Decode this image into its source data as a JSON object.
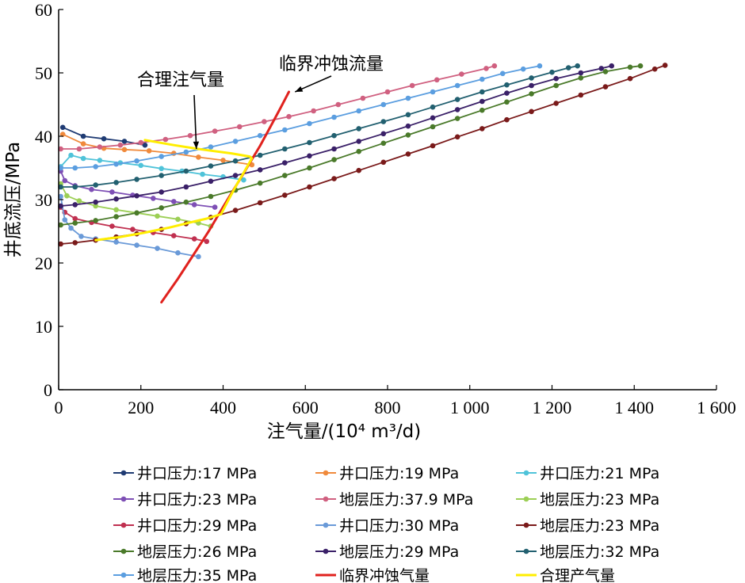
{
  "chart_data": {
    "type": "line",
    "xlabel": "注气量/(10⁴ m³/d)",
    "ylabel": "井底流压/MPa",
    "xlim": [
      0,
      1600
    ],
    "ylim": [
      0,
      60
    ],
    "x_ticks": [
      0,
      200,
      400,
      600,
      800,
      1000,
      1200,
      1400,
      1600
    ],
    "x_tick_labels": [
      "0",
      "200",
      "400",
      "600",
      "800",
      "1 000",
      "1 200",
      "1 400",
      "1 600"
    ],
    "y_ticks": [
      0,
      10,
      20,
      30,
      40,
      50,
      60
    ],
    "y_tick_labels": [
      "0",
      "10",
      "20",
      "30",
      "40",
      "50",
      "60"
    ],
    "grid": false,
    "legend_position": "bottom",
    "annotations": [
      {
        "text": "合理注气量",
        "arrow_to": [
          335,
          38
        ]
      },
      {
        "text": "临界冲蚀流量",
        "arrow_to": [
          575,
          47
        ]
      }
    ],
    "series": [
      {
        "name": "井口压力:17 MPa",
        "color": "#1f3b73",
        "marker": true,
        "x": [
          10,
          60,
          110,
          160,
          210
        ],
        "y": [
          41.4,
          40.0,
          39.6,
          39.2,
          38.6
        ]
      },
      {
        "name": "井口压力:19 MPa",
        "color": "#f08a3c",
        "marker": true,
        "x": [
          10,
          60,
          110,
          160,
          220,
          280,
          340,
          400,
          470
        ],
        "y": [
          40.3,
          38.8,
          38.1,
          37.9,
          37.7,
          37.3,
          36.7,
          36.2,
          35.5
        ]
      },
      {
        "name": "井口压力:21 MPa",
        "color": "#4fc3d9",
        "marker": true,
        "x": [
          5,
          30,
          60,
          100,
          150,
          200,
          250,
          300,
          350,
          400,
          450
        ],
        "y": [
          35.2,
          37.0,
          36.5,
          36.2,
          35.8,
          35.4,
          34.9,
          34.5,
          34.0,
          33.6,
          33.1
        ]
      },
      {
        "name": "井口压力:23 MPa",
        "color": "#7e4fb5",
        "marker": true,
        "x": [
          5,
          15,
          40,
          80,
          130,
          180,
          230,
          280,
          330,
          380
        ],
        "y": [
          34.5,
          33.0,
          32.2,
          31.6,
          31.2,
          30.7,
          30.2,
          29.7,
          29.2,
          28.8
        ]
      },
      {
        "name": "地层压力:37.9 MPa",
        "color": "#d06080",
        "marker": true,
        "x": [
          5,
          50,
          100,
          150,
          200,
          260,
          320,
          380,
          440,
          500,
          560,
          620,
          680,
          740,
          800,
          860,
          920,
          980,
          1040,
          1060
        ],
        "y": [
          38.0,
          38.0,
          38.3,
          38.6,
          39.0,
          39.5,
          40.1,
          40.8,
          41.5,
          42.3,
          43.1,
          44.0,
          45.0,
          46.0,
          47.0,
          48.0,
          48.9,
          49.8,
          50.7,
          51.1
        ]
      },
      {
        "name": "地层压力:23 MPa",
        "color": "#9ccf55",
        "marker": true,
        "x": [
          5,
          20,
          50,
          90,
          140,
          190,
          240,
          290,
          340,
          370
        ],
        "y": [
          32.5,
          30.6,
          29.8,
          29.0,
          28.4,
          27.9,
          27.4,
          26.9,
          26.3,
          25.8
        ]
      },
      {
        "name": "井口压力:29 MPa",
        "color": "#c03050",
        "marker": true,
        "x": [
          5,
          15,
          40,
          80,
          130,
          180,
          230,
          280,
          330,
          360
        ],
        "y": [
          28.8,
          28.0,
          27.0,
          26.4,
          25.8,
          25.3,
          24.8,
          24.3,
          23.8,
          23.4
        ]
      },
      {
        "name": "井口压力:30 MPa",
        "color": "#6a9ad8",
        "marker": true,
        "x": [
          5,
          15,
          30,
          55,
          90,
          140,
          190,
          240,
          290,
          340
        ],
        "y": [
          30.5,
          26.8,
          25.5,
          24.2,
          23.8,
          23.3,
          22.8,
          22.3,
          21.6,
          21.0
        ]
      },
      {
        "name": "地层压力:23 MPa",
        "color": "#7a1a1a",
        "marker": true,
        "x": [
          5,
          40,
          90,
          140,
          190,
          250,
          310,
          370,
          430,
          490,
          550,
          610,
          670,
          730,
          790,
          850,
          910,
          970,
          1030,
          1090,
          1150,
          1210,
          1270,
          1330,
          1390,
          1450,
          1475
        ],
        "y": [
          23.0,
          23.2,
          23.6,
          24.1,
          24.6,
          25.3,
          26.2,
          27.2,
          28.3,
          29.5,
          30.7,
          32.0,
          33.3,
          34.6,
          35.9,
          37.2,
          38.5,
          39.9,
          41.2,
          42.6,
          43.9,
          45.2,
          46.5,
          47.8,
          49.1,
          50.6,
          51.2
        ]
      },
      {
        "name": "地层压力:26 MPa",
        "color": "#4a7a2a",
        "marker": true,
        "x": [
          5,
          40,
          90,
          140,
          190,
          250,
          310,
          370,
          430,
          490,
          550,
          610,
          670,
          730,
          790,
          850,
          910,
          970,
          1030,
          1090,
          1150,
          1210,
          1270,
          1330,
          1390,
          1415
        ],
        "y": [
          26.0,
          26.3,
          26.7,
          27.3,
          27.9,
          28.7,
          29.6,
          30.5,
          31.5,
          32.6,
          33.8,
          35.0,
          36.3,
          37.6,
          38.9,
          40.2,
          41.5,
          42.8,
          44.1,
          45.4,
          46.7,
          48.0,
          49.2,
          50.2,
          50.9,
          51.1
        ]
      },
      {
        "name": "地层压力:29 MPa",
        "color": "#3a2068",
        "marker": true,
        "x": [
          5,
          40,
          90,
          140,
          190,
          250,
          310,
          370,
          430,
          490,
          550,
          610,
          670,
          730,
          790,
          850,
          910,
          970,
          1030,
          1090,
          1150,
          1210,
          1270,
          1320,
          1345
        ],
        "y": [
          29.0,
          29.2,
          29.6,
          30.1,
          30.6,
          31.2,
          32.0,
          32.9,
          33.8,
          34.7,
          35.8,
          36.9,
          38.0,
          39.2,
          40.4,
          41.6,
          42.9,
          44.2,
          45.5,
          46.8,
          48.0,
          49.1,
          50.0,
          50.7,
          51.1
        ]
      },
      {
        "name": "地层压力:32 MPa",
        "color": "#226070",
        "marker": true,
        "x": [
          5,
          40,
          90,
          140,
          190,
          250,
          310,
          370,
          430,
          490,
          550,
          610,
          670,
          730,
          790,
          850,
          910,
          970,
          1030,
          1090,
          1150,
          1200,
          1240,
          1262
        ],
        "y": [
          32.0,
          32.0,
          32.3,
          32.7,
          33.2,
          33.8,
          34.5,
          35.3,
          36.1,
          37.0,
          38.0,
          39.0,
          40.1,
          41.2,
          42.3,
          43.4,
          44.6,
          45.8,
          47.0,
          48.1,
          49.2,
          50.1,
          50.8,
          51.1
        ]
      },
      {
        "name": "地层压力:35 MPa",
        "color": "#5b9ee0",
        "marker": true,
        "x": [
          5,
          40,
          90,
          140,
          190,
          250,
          310,
          370,
          430,
          490,
          550,
          610,
          670,
          730,
          790,
          850,
          910,
          970,
          1030,
          1080,
          1130,
          1170
        ],
        "y": [
          35.0,
          35.0,
          35.2,
          35.6,
          36.1,
          36.8,
          37.5,
          38.3,
          39.2,
          40.1,
          41.0,
          42.0,
          43.0,
          44.0,
          45.0,
          46.0,
          47.0,
          48.0,
          49.0,
          49.9,
          50.6,
          51.1
        ]
      },
      {
        "name": "临界冲蚀气量",
        "color": "#e0221e",
        "marker": false,
        "x": [
          250,
          290,
          330,
          365,
          395,
          420,
          445,
          465,
          490,
          515,
          540,
          560
        ],
        "y": [
          13.8,
          17.5,
          21.5,
          25.0,
          28.3,
          31.0,
          33.6,
          35.8,
          38.5,
          41.5,
          44.5,
          47.0
        ]
      },
      {
        "name": "合理产气量",
        "color": "#ffee00",
        "marker": false,
        "x": [
          90,
          150,
          210,
          270,
          320,
          360,
          395,
          415,
          435,
          455,
          470,
          465,
          420,
          350,
          280,
          210
        ],
        "y": [
          23.6,
          24.1,
          24.8,
          25.6,
          26.4,
          27.0,
          27.7,
          30.2,
          32.6,
          34.8,
          36.5,
          36.8,
          37.3,
          37.9,
          38.6,
          39.4
        ]
      }
    ]
  }
}
